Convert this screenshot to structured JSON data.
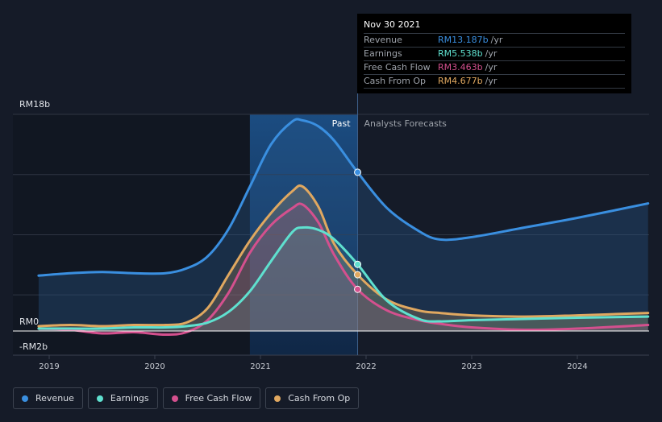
{
  "chart_data": {
    "type": "area",
    "y_labels": {
      "top": "RM18b",
      "zero": "RM0",
      "bottom": "-RM2b"
    },
    "ylim": [
      -2,
      18
    ],
    "xlim": [
      2018.9,
      2024.67
    ],
    "x_ticks": [
      "2019",
      "2020",
      "2021",
      "2022",
      "2023",
      "2024"
    ],
    "past_label": "Past",
    "forecast_label": "Analysts Forecasts",
    "past_end": 2021.92,
    "highlight_start": 2020.9,
    "series": [
      {
        "name": "Revenue",
        "color": "#3a8fe0",
        "x": [
          2018.9,
          2019.2,
          2019.5,
          2019.8,
          2020.1,
          2020.3,
          2020.5,
          2020.7,
          2020.9,
          2021.1,
          2021.3,
          2021.4,
          2021.55,
          2021.7,
          2021.92,
          2022.2,
          2022.5,
          2022.7,
          2023.0,
          2023.5,
          2024.0,
          2024.67
        ],
        "y": [
          4.6,
          4.8,
          4.9,
          4.8,
          4.8,
          5.2,
          6.2,
          8.5,
          12.0,
          15.5,
          17.4,
          17.5,
          17.0,
          15.8,
          13.187,
          10.2,
          8.3,
          7.6,
          7.8,
          8.6,
          9.4,
          10.6
        ]
      },
      {
        "name": "Earnings",
        "color": "#5fe0cf",
        "x": [
          2018.9,
          2019.2,
          2019.5,
          2019.8,
          2020.1,
          2020.3,
          2020.5,
          2020.7,
          2020.9,
          2021.1,
          2021.3,
          2021.4,
          2021.55,
          2021.7,
          2021.92,
          2022.2,
          2022.5,
          2022.7,
          2023.0,
          2023.5,
          2024.0,
          2024.67
        ],
        "y": [
          0.2,
          0.2,
          0.2,
          0.3,
          0.3,
          0.4,
          0.7,
          1.6,
          3.3,
          5.8,
          8.2,
          8.6,
          8.4,
          7.6,
          5.538,
          2.5,
          1.0,
          0.8,
          0.9,
          1.0,
          1.1,
          1.2
        ]
      },
      {
        "name": "Free Cash Flow",
        "color": "#d4508e",
        "x": [
          2018.9,
          2019.2,
          2019.5,
          2019.8,
          2020.1,
          2020.3,
          2020.5,
          2020.7,
          2020.9,
          2021.1,
          2021.3,
          2021.4,
          2021.55,
          2021.7,
          2021.92,
          2022.2,
          2022.5,
          2022.7,
          2023.0,
          2023.5,
          2024.0,
          2024.67
        ],
        "y": [
          0.2,
          0.1,
          -0.2,
          -0.1,
          -0.3,
          -0.1,
          0.9,
          3.2,
          6.5,
          8.8,
          10.2,
          10.5,
          9.0,
          6.3,
          3.463,
          1.7,
          0.9,
          0.6,
          0.3,
          0.1,
          0.2,
          0.5
        ]
      },
      {
        "name": "Cash From Op",
        "color": "#e0a860",
        "x": [
          2018.9,
          2019.2,
          2019.5,
          2019.8,
          2020.1,
          2020.3,
          2020.5,
          2020.7,
          2020.9,
          2021.1,
          2021.3,
          2021.4,
          2021.55,
          2021.7,
          2021.92,
          2022.2,
          2022.5,
          2022.7,
          2023.0,
          2023.5,
          2024.0,
          2024.67
        ],
        "y": [
          0.4,
          0.5,
          0.4,
          0.5,
          0.5,
          0.7,
          1.9,
          4.7,
          7.5,
          9.8,
          11.6,
          12.0,
          10.3,
          7.2,
          4.677,
          2.6,
          1.7,
          1.5,
          1.3,
          1.2,
          1.3,
          1.5
        ]
      }
    ],
    "legend_placement": "bottom-left"
  },
  "tooltip": {
    "date": "Nov 30 2021",
    "rows": [
      {
        "label": "Revenue",
        "value": "RM13.187b",
        "unit": "/yr",
        "color": "#3a8fe0"
      },
      {
        "label": "Earnings",
        "value": "RM5.538b",
        "unit": "/yr",
        "color": "#5fe0cf"
      },
      {
        "label": "Free Cash Flow",
        "value": "RM3.463b",
        "unit": "/yr",
        "color": "#d4508e"
      },
      {
        "label": "Cash From Op",
        "value": "RM4.677b",
        "unit": "/yr",
        "color": "#e0a860"
      }
    ]
  },
  "legend": [
    {
      "label": "Revenue",
      "color": "#3a8fe0"
    },
    {
      "label": "Earnings",
      "color": "#5fe0cf"
    },
    {
      "label": "Free Cash Flow",
      "color": "#d4508e"
    },
    {
      "label": "Cash From Op",
      "color": "#e0a860"
    }
  ]
}
